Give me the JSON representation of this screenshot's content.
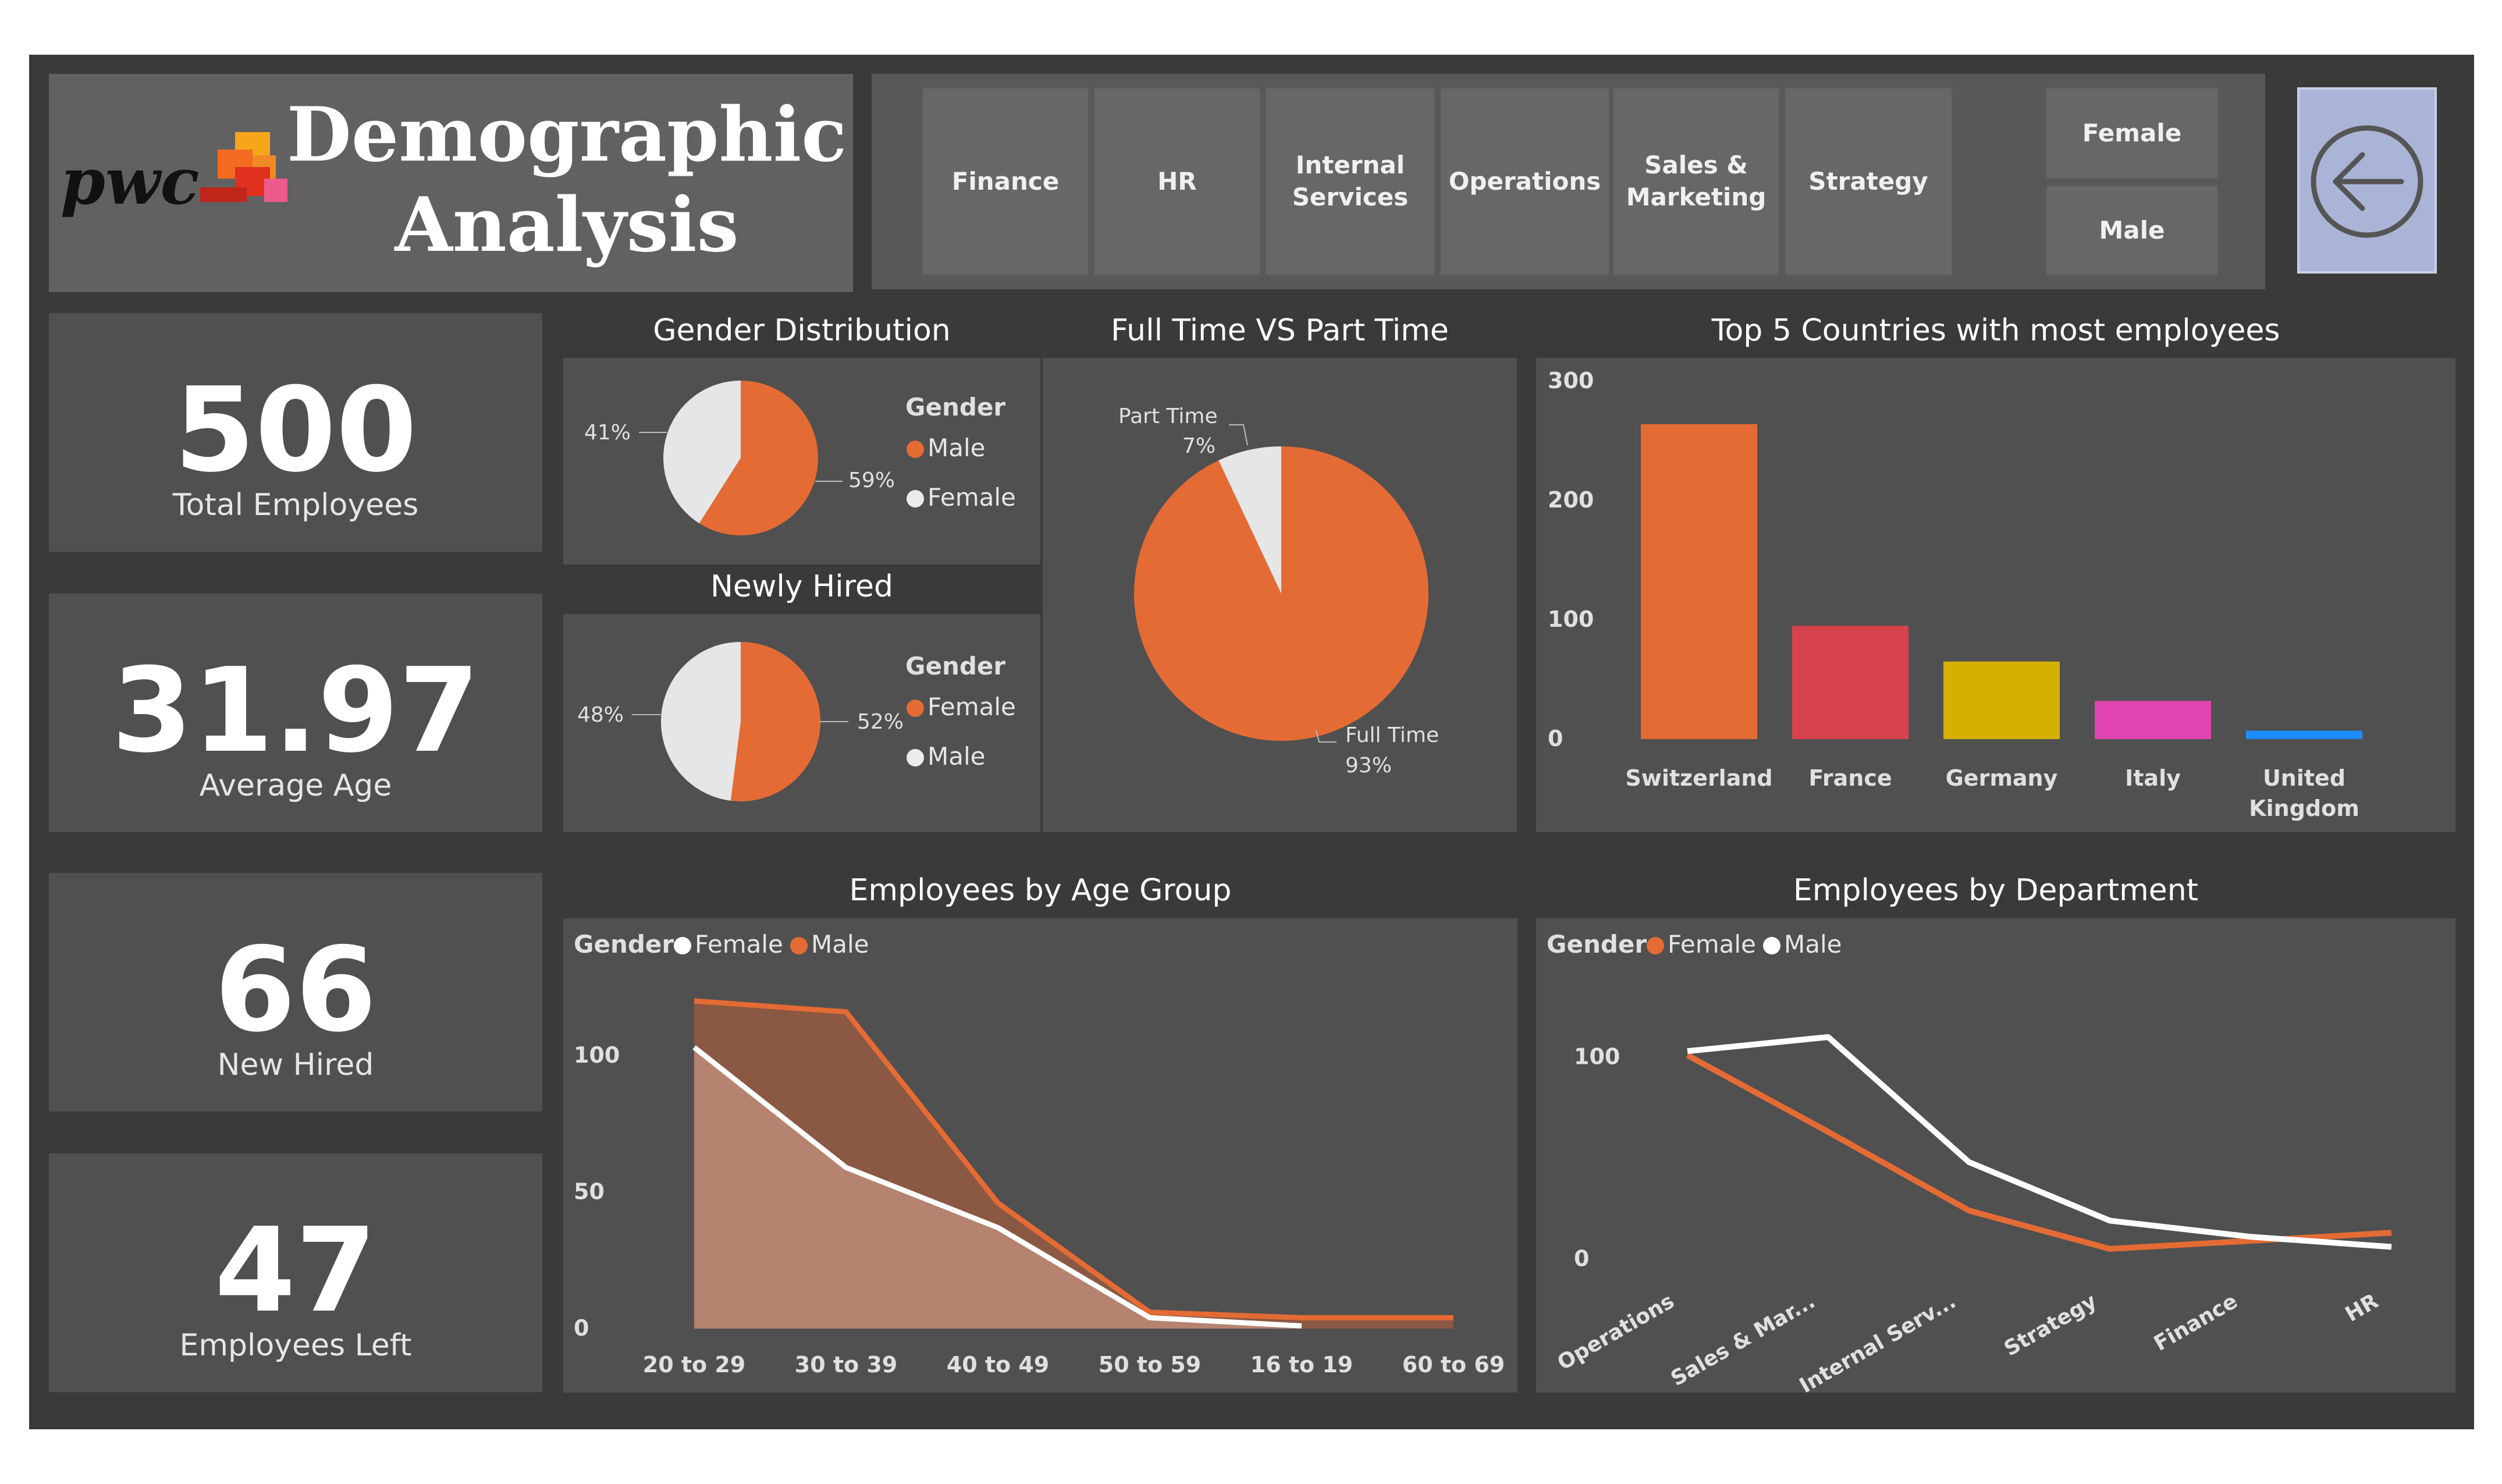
{
  "header": {
    "logo_text": "pwc",
    "title_line1": "Demographic",
    "title_line2": "Analysis",
    "department_buttons": [
      "Finance",
      "HR",
      "Internal Services",
      "Operations",
      "Sales & Marketing",
      "Strategy"
    ],
    "gender_buttons": [
      "Female",
      "Male"
    ],
    "back_icon": "back-arrow-icon"
  },
  "kpis": [
    {
      "value": "500",
      "label": "Total Employees"
    },
    {
      "value": "31.97",
      "label": "Average Age"
    },
    {
      "value": "66",
      "label": "New Hired"
    },
    {
      "value": "47",
      "label": "Employees Left"
    }
  ],
  "colors": {
    "background": "#3a3a3a",
    "panel": "#505050",
    "orange": "#e46b34",
    "white": "#ececec",
    "red": "#d6434d",
    "yellow": "#d6b000",
    "pink": "#e044b0",
    "blue": "#1a8cff",
    "back_button": "#aab4d6"
  },
  "gender_distribution": {
    "title": "Gender Distribution",
    "legend_title": "Gender",
    "legend": [
      "Male",
      "Female"
    ],
    "slices": [
      {
        "name": "Male",
        "percent": 59,
        "label": "59%",
        "color": "#e46b34"
      },
      {
        "name": "Female",
        "percent": 41,
        "label": "41%",
        "color": "#e6e6e6"
      }
    ]
  },
  "newly_hired": {
    "title": "Newly Hired",
    "legend_title": "Gender",
    "legend": [
      "Female",
      "Male"
    ],
    "slices": [
      {
        "name": "Female",
        "percent": 52,
        "label": "52%",
        "color": "#e46b34"
      },
      {
        "name": "Male",
        "percent": 48,
        "label": "48%",
        "color": "#e6e6e6"
      }
    ]
  },
  "full_part_time": {
    "title": "Full Time VS Part Time",
    "slices": [
      {
        "name": "Full Time",
        "percent": 93,
        "label": "93%",
        "color": "#e46b34"
      },
      {
        "name": "Part Time",
        "percent": 7,
        "label": "7%",
        "color": "#e6e6e6"
      }
    ]
  },
  "chart_data": [
    {
      "type": "bar",
      "title": "Top 5 Countries with most employees",
      "categories": [
        "Switzerland",
        "France",
        "Germany",
        "Italy",
        "United Kingdom"
      ],
      "values": [
        264,
        95,
        65,
        32,
        7
      ],
      "colors": [
        "#e46b34",
        "#d6434d",
        "#d6b000",
        "#e044b0",
        "#1a8cff"
      ],
      "yticks": [
        0,
        100,
        200,
        300
      ],
      "ylim": [
        0,
        300
      ],
      "grid": false
    },
    {
      "type": "area",
      "title": "Employees by Age Group",
      "legend_title": "Gender",
      "categories": [
        "20 to 29",
        "30 to 39",
        "40 to 49",
        "50 to 59",
        "16 to 19",
        "60 to 69"
      ],
      "series": [
        {
          "name": "Female",
          "values": [
            103,
            59,
            37,
            4,
            1,
            null
          ],
          "color": "#ffffff"
        },
        {
          "name": "Male",
          "values": [
            120,
            116,
            46,
            6,
            4,
            4
          ],
          "color": "#e46b34"
        }
      ],
      "yticks": [
        0,
        50,
        100
      ],
      "ylim": [
        0,
        130
      ],
      "legend_position": "top-left"
    },
    {
      "type": "line",
      "title": "Employees by Department",
      "legend_title": "Gender",
      "categories": [
        "Operations",
        "Sales & Mar...",
        "Internal Serv...",
        "Strategy",
        "Finance",
        "HR"
      ],
      "series": [
        {
          "name": "Female",
          "values": [
            101,
            63,
            24,
            5,
            9,
            13
          ],
          "color": "#e46b34"
        },
        {
          "name": "Male",
          "values": [
            103,
            110,
            48,
            19,
            11,
            6
          ],
          "color": "#ffffff"
        }
      ],
      "yticks": [
        0,
        100
      ],
      "ylim": [
        -10,
        140
      ],
      "legend_position": "top-left"
    }
  ]
}
